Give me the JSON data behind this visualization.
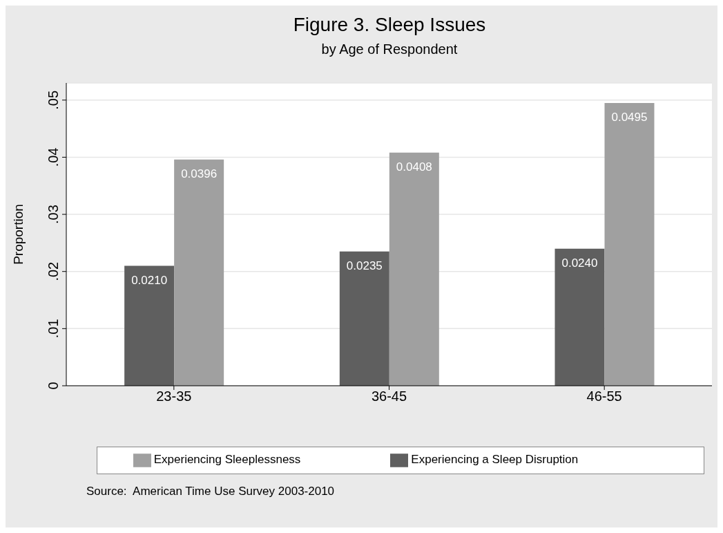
{
  "chart_data": {
    "type": "bar",
    "title": "Figure 3. Sleep Issues",
    "subtitle": "by Age of Respondent",
    "ylabel": "Proportion",
    "categories": [
      "23-35",
      "36-45",
      "46-55"
    ],
    "series": [
      {
        "name": "Experiencing a Sleep Disruption",
        "color": "#5f5f5f",
        "values": [
          0.021,
          0.0235,
          0.024
        ],
        "value_labels": [
          "0.0210",
          "0.0235",
          "0.0240"
        ]
      },
      {
        "name": "Experiencing Sleeplessness",
        "color": "#a0a0a0",
        "values": [
          0.0396,
          0.0408,
          0.0495
        ],
        "value_labels": [
          "0.0396",
          "0.0408",
          "0.0495"
        ]
      }
    ],
    "ylim": [
      0,
      0.053
    ],
    "yticks": [
      0,
      {
        "value": 0.01,
        "label": ".01"
      },
      {
        "value": 0.02,
        "label": ".02"
      },
      {
        "value": 0.03,
        "label": ".03"
      },
      {
        "value": 0.04,
        "label": ".04"
      },
      {
        "value": 0.05,
        "label": ".05"
      }
    ],
    "grid": "y",
    "legend": "bottom",
    "annotations": [
      "Source:  American Time Use Survey 2003-2010"
    ]
  }
}
